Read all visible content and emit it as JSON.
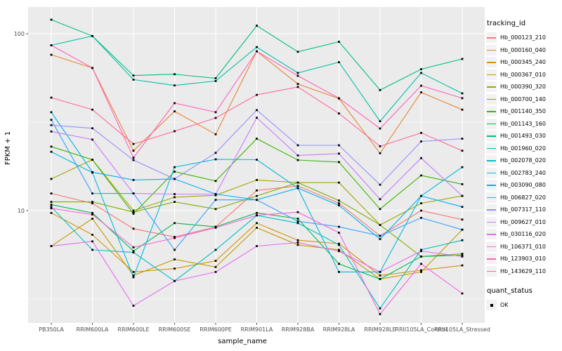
{
  "legend": {
    "tracking_title": "tracking_id",
    "quant_title": "quant_status",
    "quant_items": [
      {
        "label": "OK",
        "marker": "black-square"
      }
    ]
  },
  "chart_data": {
    "type": "line",
    "title": "",
    "xlabel": "sample_name",
    "ylabel": "FPKM + 1",
    "y_scale": "log10",
    "y_ticks": [
      10,
      100
    ],
    "y_minor_ticks": [
      3.162,
      31.62
    ],
    "ylim": [
      2.3,
      141
    ],
    "grid": "on",
    "legend_position": "right",
    "panel_color": "#EBEBEB",
    "grid_color": "#FFFFFF",
    "point_color": "#000000",
    "point_shape": "square",
    "categories": [
      "PB350LA",
      "RRIM600LA",
      "RRIM600LE",
      "RRIM600SE",
      "RRIM600PE",
      "RRIM901LA",
      "RRIM928BA",
      "RRIM928LA",
      "RRIM928LE",
      "RRII105LA_Control",
      "RRII105LA_Stressed"
    ],
    "series": [
      {
        "name": "Hb_000123_210",
        "color": "#F8766D",
        "values": [
          12.5,
          11.0,
          7.9,
          7.1,
          8.1,
          13.0,
          13.8,
          11.0,
          7.2,
          10.0,
          8.9
        ]
      },
      {
        "name": "Hb_000160_040",
        "color": "#EA8331",
        "values": [
          76,
          64,
          21.8,
          36.4,
          27.0,
          79.5,
          52,
          43,
          21.1,
          46.6,
          37.2
        ]
      },
      {
        "name": "Hb_000345_240",
        "color": "#D89000",
        "values": [
          9.7,
          7.3,
          4.5,
          4.7,
          5.2,
          8.5,
          6.8,
          6.5,
          4.3,
          4.6,
          4.9
        ]
      },
      {
        "name": "Hb_000367_010",
        "color": "#C09B00",
        "values": [
          6.3,
          9.0,
          4.3,
          5.3,
          4.8,
          8.0,
          6.4,
          6.0,
          4.1,
          4.5,
          7.8
        ]
      },
      {
        "name": "Hb_000390_320",
        "color": "#A3A500",
        "values": [
          15.1,
          19.4,
          10.0,
          11.9,
          12.2,
          14.9,
          14.4,
          14.4,
          8.3,
          11.0,
          12.1
        ]
      },
      {
        "name": "Hb_000700_140",
        "color": "#7CAE00",
        "values": [
          11.2,
          11.2,
          9.8,
          11.2,
          10.2,
          12.1,
          14.4,
          11.4,
          8.3,
          5.5,
          5.7
        ]
      },
      {
        "name": "Hb_001140_350",
        "color": "#39B600",
        "values": [
          23.0,
          19.4,
          9.6,
          16.6,
          14.7,
          25.5,
          19.3,
          18.8,
          10.2,
          15.8,
          14.1
        ]
      },
      {
        "name": "Hb_001143_160",
        "color": "#00BB4E",
        "values": [
          10.8,
          9.7,
          5.9,
          8.5,
          8.1,
          9.7,
          9.0,
          5.0,
          4.1,
          5.5,
          5.6
        ]
      },
      {
        "name": "Hb_001493_030",
        "color": "#00BF7D",
        "values": [
          120,
          97,
          58,
          59,
          56,
          111,
          79,
          90,
          48,
          63,
          72
        ]
      },
      {
        "name": "Hb_001960_020",
        "color": "#00C1A3",
        "values": [
          86,
          97,
          55,
          51,
          54,
          84,
          60,
          69,
          32,
          60,
          46
        ]
      },
      {
        "name": "Hb_002078_020",
        "color": "#00BFC4",
        "values": [
          10.5,
          6.0,
          5.8,
          4.0,
          6.0,
          9.4,
          8.5,
          6.4,
          2.8,
          6.0,
          6.8
        ]
      },
      {
        "name": "Hb_002783_240",
        "color": "#00BAE0",
        "values": [
          21.5,
          16.4,
          4.2,
          17.6,
          19.5,
          19.4,
          13.4,
          4.5,
          4.5,
          12.1,
          17.6
        ]
      },
      {
        "name": "Hb_003090_080",
        "color": "#00B0F6",
        "values": [
          36,
          16.5,
          14.9,
          15.1,
          12.4,
          11.5,
          13.4,
          10.7,
          6.9,
          12.1,
          10.5
        ]
      },
      {
        "name": "Hb_006827_020",
        "color": "#35A2FF",
        "values": [
          32.6,
          12.5,
          12.5,
          6.0,
          11.5,
          11.5,
          8.7,
          8.1,
          7.2,
          9.1,
          7.8
        ]
      },
      {
        "name": "Hb_007317_110",
        "color": "#9590FF",
        "values": [
          30.4,
          29.2,
          19.3,
          15.1,
          21.2,
          37,
          23.4,
          23.4,
          14.0,
          24.6,
          25.5
        ]
      },
      {
        "name": "Hb_009627_010",
        "color": "#C77CFF",
        "values": [
          28,
          25.2,
          12.5,
          12.4,
          12.4,
          33.5,
          20.5,
          21,
          11.6,
          19.8,
          12.1
        ]
      },
      {
        "name": "Hb_030116_020",
        "color": "#E76BF3",
        "values": [
          6.3,
          6.7,
          2.9,
          4.0,
          4.5,
          6.3,
          6.6,
          5.9,
          4.5,
          5.9,
          5.5
        ]
      },
      {
        "name": "Hb_106371_010",
        "color": "#FA62DB",
        "values": [
          10.3,
          9.5,
          6.2,
          7.0,
          8.0,
          9.4,
          9.8,
          7.5,
          2.6,
          5.0,
          3.4
        ]
      },
      {
        "name": "Hb_123903_010",
        "color": "#FF62BC",
        "values": [
          86,
          64,
          19.9,
          40.5,
          36,
          79.5,
          57.8,
          43.2,
          29.1,
          50.8,
          43.2
        ]
      },
      {
        "name": "Hb_143629_110",
        "color": "#FF6A98",
        "values": [
          43.5,
          37.2,
          23.8,
          28.1,
          33.4,
          45.1,
          50,
          35.4,
          23.1,
          27.5,
          21.8
        ]
      }
    ]
  }
}
